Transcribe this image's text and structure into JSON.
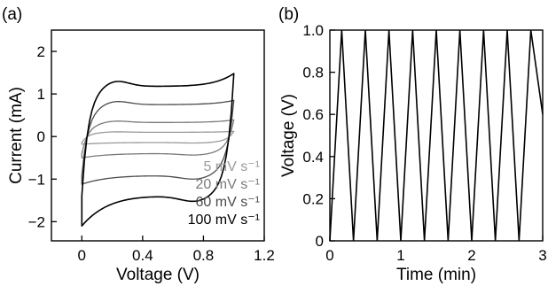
{
  "chart_data": [
    {
      "type": "line",
      "panel_label": "(a)",
      "xlabel": "Voltage (V)",
      "ylabel": "Current (mA)",
      "xlim": [
        -0.2,
        1.2
      ],
      "ylim": [
        -2.45,
        2.5
      ],
      "xticks": [
        0,
        0.4,
        0.8,
        1.2
      ],
      "xtick_labels": [
        "0",
        "0.4",
        "0.8",
        "1.2"
      ],
      "yticks": [
        -2,
        -1,
        0,
        1,
        2
      ],
      "ytick_labels": [
        "−2",
        "−1",
        "0",
        "1",
        "2"
      ],
      "legend_position": "bottom-right",
      "series": [
        {
          "name": "5 mV s⁻¹",
          "color": "#9a9a9a",
          "vmin": 0,
          "vmax": 1.0,
          "upper_current": 0.1,
          "lower_current": -0.14,
          "spike_upper": 0.02,
          "spike_lower": -0.04
        },
        {
          "name": "20 mV s⁻¹",
          "color": "#7a7a7a",
          "vmin": 0,
          "vmax": 1.0,
          "upper_current": 0.33,
          "lower_current": -0.4,
          "spike_upper": 0.06,
          "spike_lower": -0.1
        },
        {
          "name": "60 mV s⁻¹",
          "color": "#4a4a4a",
          "vmin": 0,
          "vmax": 1.0,
          "upper_current": 0.75,
          "lower_current": -0.92,
          "spike_upper": 0.1,
          "spike_lower": -0.2
        },
        {
          "name": "100 mV s⁻¹",
          "color": "#000000",
          "vmin": 0,
          "vmax": 1.0,
          "upper_current": 1.18,
          "lower_current": -1.4,
          "spike_upper": 0.3,
          "spike_lower": -0.7
        }
      ]
    },
    {
      "type": "line",
      "panel_label": "(b)",
      "xlabel": "Time (min)",
      "ylabel": "Voltage (V)",
      "xlim": [
        0,
        3
      ],
      "ylim": [
        0,
        1.0
      ],
      "xticks": [
        0,
        1,
        2,
        3
      ],
      "xtick_labels": [
        "0",
        "1",
        "2",
        "3"
      ],
      "yticks": [
        0,
        0.2,
        0.4,
        0.6,
        0.8,
        1.0
      ],
      "ytick_labels": [
        "0",
        "0.2",
        "0.4",
        "0.6",
        "0.8",
        "1.0"
      ],
      "series": [
        {
          "color": "#000000",
          "x": [
            0,
            0.167,
            0.333,
            0.5,
            0.667,
            0.833,
            1.0,
            1.167,
            1.333,
            1.5,
            1.667,
            1.833,
            2.0,
            2.167,
            2.333,
            2.5,
            2.667,
            2.833,
            3.0
          ],
          "y": [
            0,
            1,
            0,
            1,
            0,
            1,
            0,
            1,
            0,
            1,
            0,
            1,
            0,
            1,
            0,
            1,
            0,
            1,
            0.6
          ]
        }
      ]
    }
  ]
}
